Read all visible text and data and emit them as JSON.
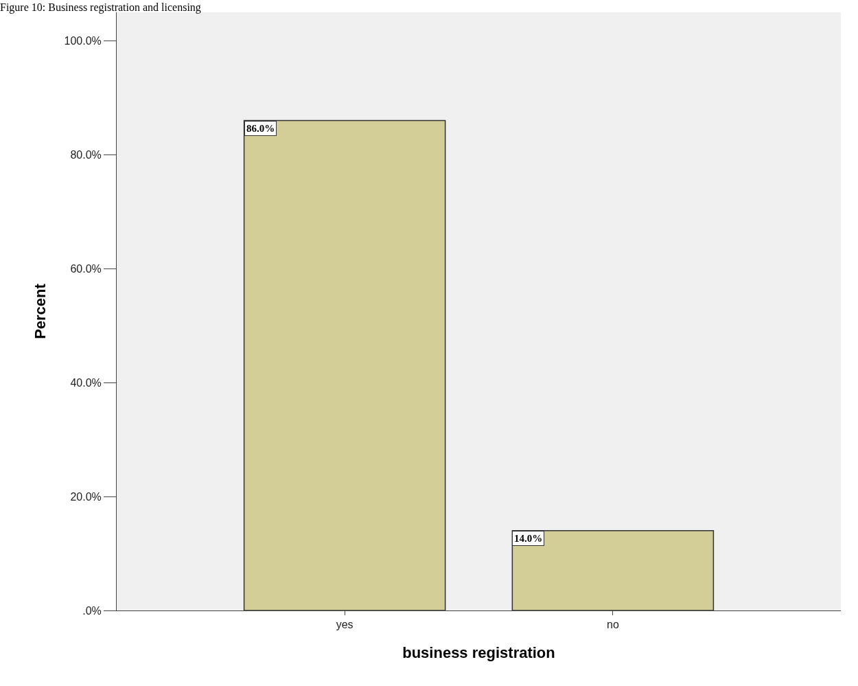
{
  "chart_data": {
    "type": "bar",
    "title": "Figure 10: Business registration and licensing",
    "xlabel": "business registration",
    "ylabel": "Percent",
    "categories": [
      "yes",
      "no"
    ],
    "values": [
      86.0,
      14.0
    ],
    "value_labels": [
      "86.0%",
      "14.0%"
    ],
    "color": "#d3ce97",
    "ylim": [
      0,
      105
    ],
    "yticks": [
      {
        "value": 0,
        "label": ".0%"
      },
      {
        "value": 20,
        "label": "20.0%"
      },
      {
        "value": 40,
        "label": "40.0%"
      },
      {
        "value": 60,
        "label": "60.0%"
      },
      {
        "value": 80,
        "label": "80.0%"
      },
      {
        "value": 100,
        "label": "100.0%"
      }
    ],
    "grid": false,
    "legend": false
  }
}
